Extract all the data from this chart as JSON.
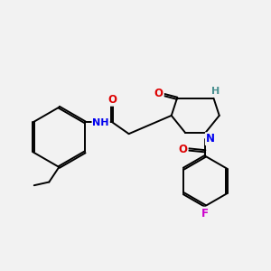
{
  "bg_color": "#f2f2f2",
  "atom_colors": {
    "C": "#000000",
    "N": "#0000ee",
    "O": "#dd0000",
    "F": "#cc00cc",
    "H_teal": "#4a9090"
  },
  "line_color": "#000000",
  "font_size": 8.5,
  "fig_size": [
    3.0,
    3.0
  ],
  "dpi": 100
}
